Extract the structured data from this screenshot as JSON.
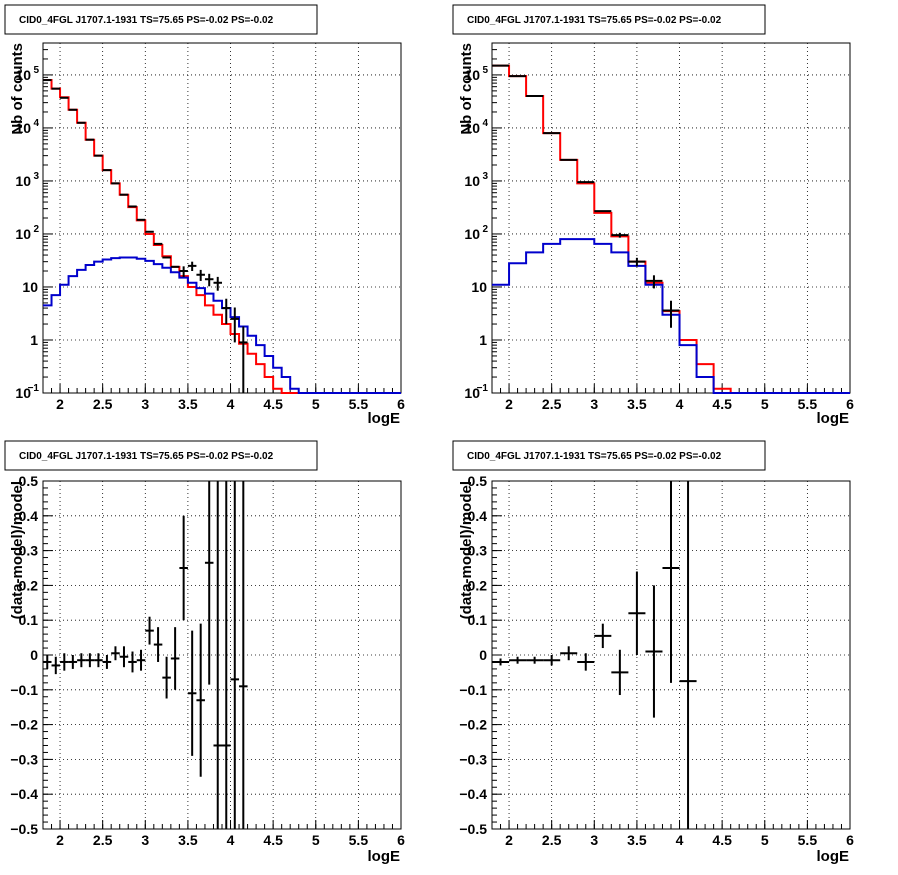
{
  "colors": {
    "data": "#000000",
    "total_model": "#ff0000",
    "source_model": "#0000cc",
    "grid": "#000000"
  },
  "chart_data": [
    {
      "id": "counts_fine",
      "type": "histogram",
      "title": "CID0_4FGL J1707.1-1931 TS=75.65 PS=-0.02 PS=-0.02",
      "xlabel": "logE",
      "ylabel": "Nb of counts",
      "x_scale": "linear",
      "y_scale": "log",
      "xlim": [
        1.8,
        6.0
      ],
      "ylim": [
        0.1,
        400000
      ],
      "x_ticks": [
        "2",
        "2.5",
        "3",
        "3.5",
        "4",
        "4.5",
        "5",
        "5.5",
        "6"
      ],
      "y_ticks": [
        {
          "base": "10",
          "exp": "−1"
        },
        {
          "base": "1",
          "exp": ""
        },
        {
          "base": "10",
          "exp": ""
        },
        {
          "base": "10",
          "exp": "2"
        },
        {
          "base": "10",
          "exp": "3"
        },
        {
          "base": "10",
          "exp": "4"
        },
        {
          "base": "10",
          "exp": "5"
        }
      ],
      "grid": true,
      "bin_edges": [
        1.8,
        1.9,
        2.0,
        2.1,
        2.2,
        2.3,
        2.4,
        2.5,
        2.6,
        2.7,
        2.8,
        2.9,
        3.0,
        3.1,
        3.2,
        3.3,
        3.4,
        3.5,
        3.6,
        3.7,
        3.8,
        3.9,
        4.0,
        4.1,
        4.2,
        4.3,
        4.4,
        4.5,
        4.6,
        4.7,
        4.8,
        4.9,
        5.0,
        5.1,
        5.2,
        5.3,
        5.4,
        5.5,
        5.6,
        5.7,
        5.8,
        5.9,
        6.0
      ],
      "series": [
        {
          "role": "total_model",
          "style": "step",
          "values": [
            80000,
            55000,
            38000,
            22000,
            12500,
            6000,
            3000,
            1600,
            900,
            550,
            320,
            180,
            100,
            62,
            38,
            24,
            16,
            10,
            7,
            4.5,
            3,
            2,
            1.3,
            0.85,
            0.55,
            0.35,
            0.2,
            0.12,
            0.1,
            0.1,
            0.1,
            0.1,
            0.1,
            0.1,
            0.1,
            0.1,
            0.1,
            0.1,
            0.1,
            0.1,
            0.1,
            0.1
          ]
        },
        {
          "role": "source_model",
          "style": "step",
          "values": [
            4.5,
            7,
            11,
            16,
            21,
            26,
            30,
            33,
            35,
            36,
            36,
            34,
            31,
            27,
            23,
            19,
            15,
            12,
            9.5,
            7.5,
            5.5,
            4,
            2.7,
            1.8,
            1.2,
            0.8,
            0.5,
            0.3,
            0.2,
            0.12,
            0.1,
            0.1,
            0.1,
            0.1,
            0.1,
            0.1,
            0.1,
            0.1,
            0.1,
            0.1,
            0.1,
            0.1
          ]
        },
        {
          "role": "data",
          "style": "errorbar",
          "points": [
            [
              1.85,
              80000,
              0
            ],
            [
              1.95,
              55000,
              0
            ],
            [
              2.05,
              37000,
              0
            ],
            [
              2.15,
              22000,
              0
            ],
            [
              2.25,
              12500,
              0
            ],
            [
              2.35,
              6000,
              0
            ],
            [
              2.45,
              3000,
              0
            ],
            [
              2.55,
              1600,
              0
            ],
            [
              2.65,
              900,
              0
            ],
            [
              2.75,
              550,
              0
            ],
            [
              2.85,
              330,
              0
            ],
            [
              2.95,
              185,
              0
            ],
            [
              3.05,
              110,
              0
            ],
            [
              3.15,
              65,
              0
            ],
            [
              3.25,
              36,
              0
            ],
            [
              3.35,
              24,
              0
            ],
            [
              3.45,
              20,
              4.5
            ],
            [
              3.55,
              25,
              5
            ],
            [
              3.65,
              17,
              4
            ],
            [
              3.75,
              14,
              3.7
            ],
            [
              3.85,
              12,
              3.5
            ],
            [
              3.95,
              4,
              2
            ],
            [
              4.05,
              2.5,
              1.6
            ],
            [
              4.15,
              0.9,
              0.9
            ]
          ]
        }
      ]
    },
    {
      "id": "counts_coarse",
      "type": "histogram",
      "title": "CID0_4FGL J1707.1-1931 TS=75.65 PS=-0.02 PS=-0.02",
      "xlabel": "logE",
      "ylabel": "Nb of counts",
      "x_scale": "linear",
      "y_scale": "log",
      "xlim": [
        1.8,
        6.0
      ],
      "ylim": [
        0.1,
        400000
      ],
      "x_ticks": [
        "2",
        "2.5",
        "3",
        "3.5",
        "4",
        "4.5",
        "5",
        "5.5",
        "6"
      ],
      "y_ticks": [
        {
          "base": "10",
          "exp": "−1"
        },
        {
          "base": "1",
          "exp": ""
        },
        {
          "base": "10",
          "exp": ""
        },
        {
          "base": "10",
          "exp": "2"
        },
        {
          "base": "10",
          "exp": "3"
        },
        {
          "base": "10",
          "exp": "4"
        },
        {
          "base": "10",
          "exp": "5"
        }
      ],
      "grid": true,
      "bin_edges": [
        1.8,
        2.0,
        2.2,
        2.4,
        2.6,
        2.8,
        3.0,
        3.2,
        3.4,
        3.6,
        3.8,
        4.0,
        4.2,
        4.4,
        4.6,
        4.8,
        5.0,
        5.2,
        5.4,
        5.6,
        5.8,
        6.0
      ],
      "series": [
        {
          "role": "total_model",
          "style": "step",
          "values": [
            150000,
            95000,
            40000,
            8000,
            2500,
            900,
            250,
            90,
            30,
            12,
            3.5,
            1,
            0.35,
            0.12,
            0.1,
            0.1,
            0.1,
            0.1,
            0.1,
            0.1,
            0.1
          ]
        },
        {
          "role": "source_model",
          "style": "step",
          "values": [
            11,
            28,
            45,
            65,
            80,
            80,
            65,
            45,
            25,
            11,
            3,
            0.8,
            0.2,
            0.1,
            0.1,
            0.1,
            0.1,
            0.1,
            0.1,
            0.1,
            0.1
          ]
        },
        {
          "role": "data",
          "style": "errorbar",
          "points": [
            [
              1.9,
              150000,
              0
            ],
            [
              2.1,
              95000,
              0
            ],
            [
              2.3,
              40000,
              0
            ],
            [
              2.5,
              8000,
              0
            ],
            [
              2.7,
              2500,
              0
            ],
            [
              2.9,
              950,
              0
            ],
            [
              3.1,
              270,
              0
            ],
            [
              3.3,
              95,
              10
            ],
            [
              3.5,
              30,
              5.5
            ],
            [
              3.7,
              13,
              3.6
            ],
            [
              3.9,
              3.6,
              1.9
            ]
          ]
        }
      ]
    },
    {
      "id": "resid_fine",
      "type": "errorbar",
      "title": "CID0_4FGL J1707.1-1931 TS=75.65 PS=-0.02 PS=-0.02",
      "xlabel": "logE",
      "ylabel": "(data-model)/model",
      "xlim": [
        1.8,
        6.0
      ],
      "ylim": [
        -0.5,
        0.5
      ],
      "x_ticks": [
        "2",
        "2.5",
        "3",
        "3.5",
        "4",
        "4.5",
        "5",
        "5.5",
        "6"
      ],
      "y_ticks": [
        "−0.5",
        "−0.4",
        "−0.3",
        "−0.2",
        "−0.1",
        "0",
        "0.1",
        "0.2",
        "0.3",
        "0.4",
        "0.5"
      ],
      "grid": true,
      "points": [
        [
          1.85,
          -0.02,
          0.02
        ],
        [
          1.95,
          -0.03,
          0.025
        ],
        [
          2.05,
          -0.02,
          0.025
        ],
        [
          2.15,
          -0.02,
          0.02
        ],
        [
          2.25,
          -0.015,
          0.02
        ],
        [
          2.35,
          -0.015,
          0.02
        ],
        [
          2.45,
          -0.015,
          0.02
        ],
        [
          2.55,
          -0.02,
          0.02
        ],
        [
          2.65,
          0.005,
          0.02
        ],
        [
          2.75,
          -0.005,
          0.03
        ],
        [
          2.85,
          -0.02,
          0.03
        ],
        [
          2.95,
          -0.015,
          0.03
        ],
        [
          3.05,
          0.07,
          0.04
        ],
        [
          3.15,
          0.03,
          0.05
        ],
        [
          3.25,
          -0.065,
          0.06
        ],
        [
          3.35,
          -0.01,
          0.09
        ],
        [
          3.45,
          0.25,
          0.15
        ],
        [
          3.55,
          -0.11,
          0.18
        ],
        [
          3.65,
          -0.13,
          0.22
        ],
        [
          3.75,
          0.265,
          0.35
        ],
        [
          3.85,
          -0.26,
          0.9
        ],
        [
          3.95,
          -0.26,
          0.9
        ],
        [
          4.05,
          -0.07,
          0.9
        ],
        [
          4.15,
          -0.09,
          0.9
        ]
      ]
    },
    {
      "id": "resid_coarse",
      "type": "errorbar",
      "title": "CID0_4FGL J1707.1-1931 TS=75.65 PS=-0.02 PS=-0.02",
      "xlabel": "logE",
      "ylabel": "(data-model)/model",
      "xlim": [
        1.8,
        6.0
      ],
      "ylim": [
        -0.5,
        0.5
      ],
      "x_ticks": [
        "2",
        "2.5",
        "3",
        "3.5",
        "4",
        "4.5",
        "5",
        "5.5",
        "6"
      ],
      "y_ticks": [
        "−0.5",
        "−0.4",
        "−0.3",
        "−0.2",
        "−0.1",
        "0",
        "0.1",
        "0.2",
        "0.3",
        "0.4",
        "0.5"
      ],
      "grid": true,
      "points": [
        [
          1.9,
          -0.02,
          0.01
        ],
        [
          2.1,
          -0.015,
          0.01
        ],
        [
          2.3,
          -0.015,
          0.01
        ],
        [
          2.5,
          -0.015,
          0.015
        ],
        [
          2.7,
          0.005,
          0.02
        ],
        [
          2.9,
          -0.02,
          0.025
        ],
        [
          3.1,
          0.055,
          0.035
        ],
        [
          3.3,
          -0.05,
          0.065
        ],
        [
          3.5,
          0.12,
          0.12
        ],
        [
          3.7,
          0.01,
          0.19
        ],
        [
          3.9,
          0.25,
          0.33
        ],
        [
          4.1,
          -0.075,
          0.9
        ]
      ]
    }
  ]
}
